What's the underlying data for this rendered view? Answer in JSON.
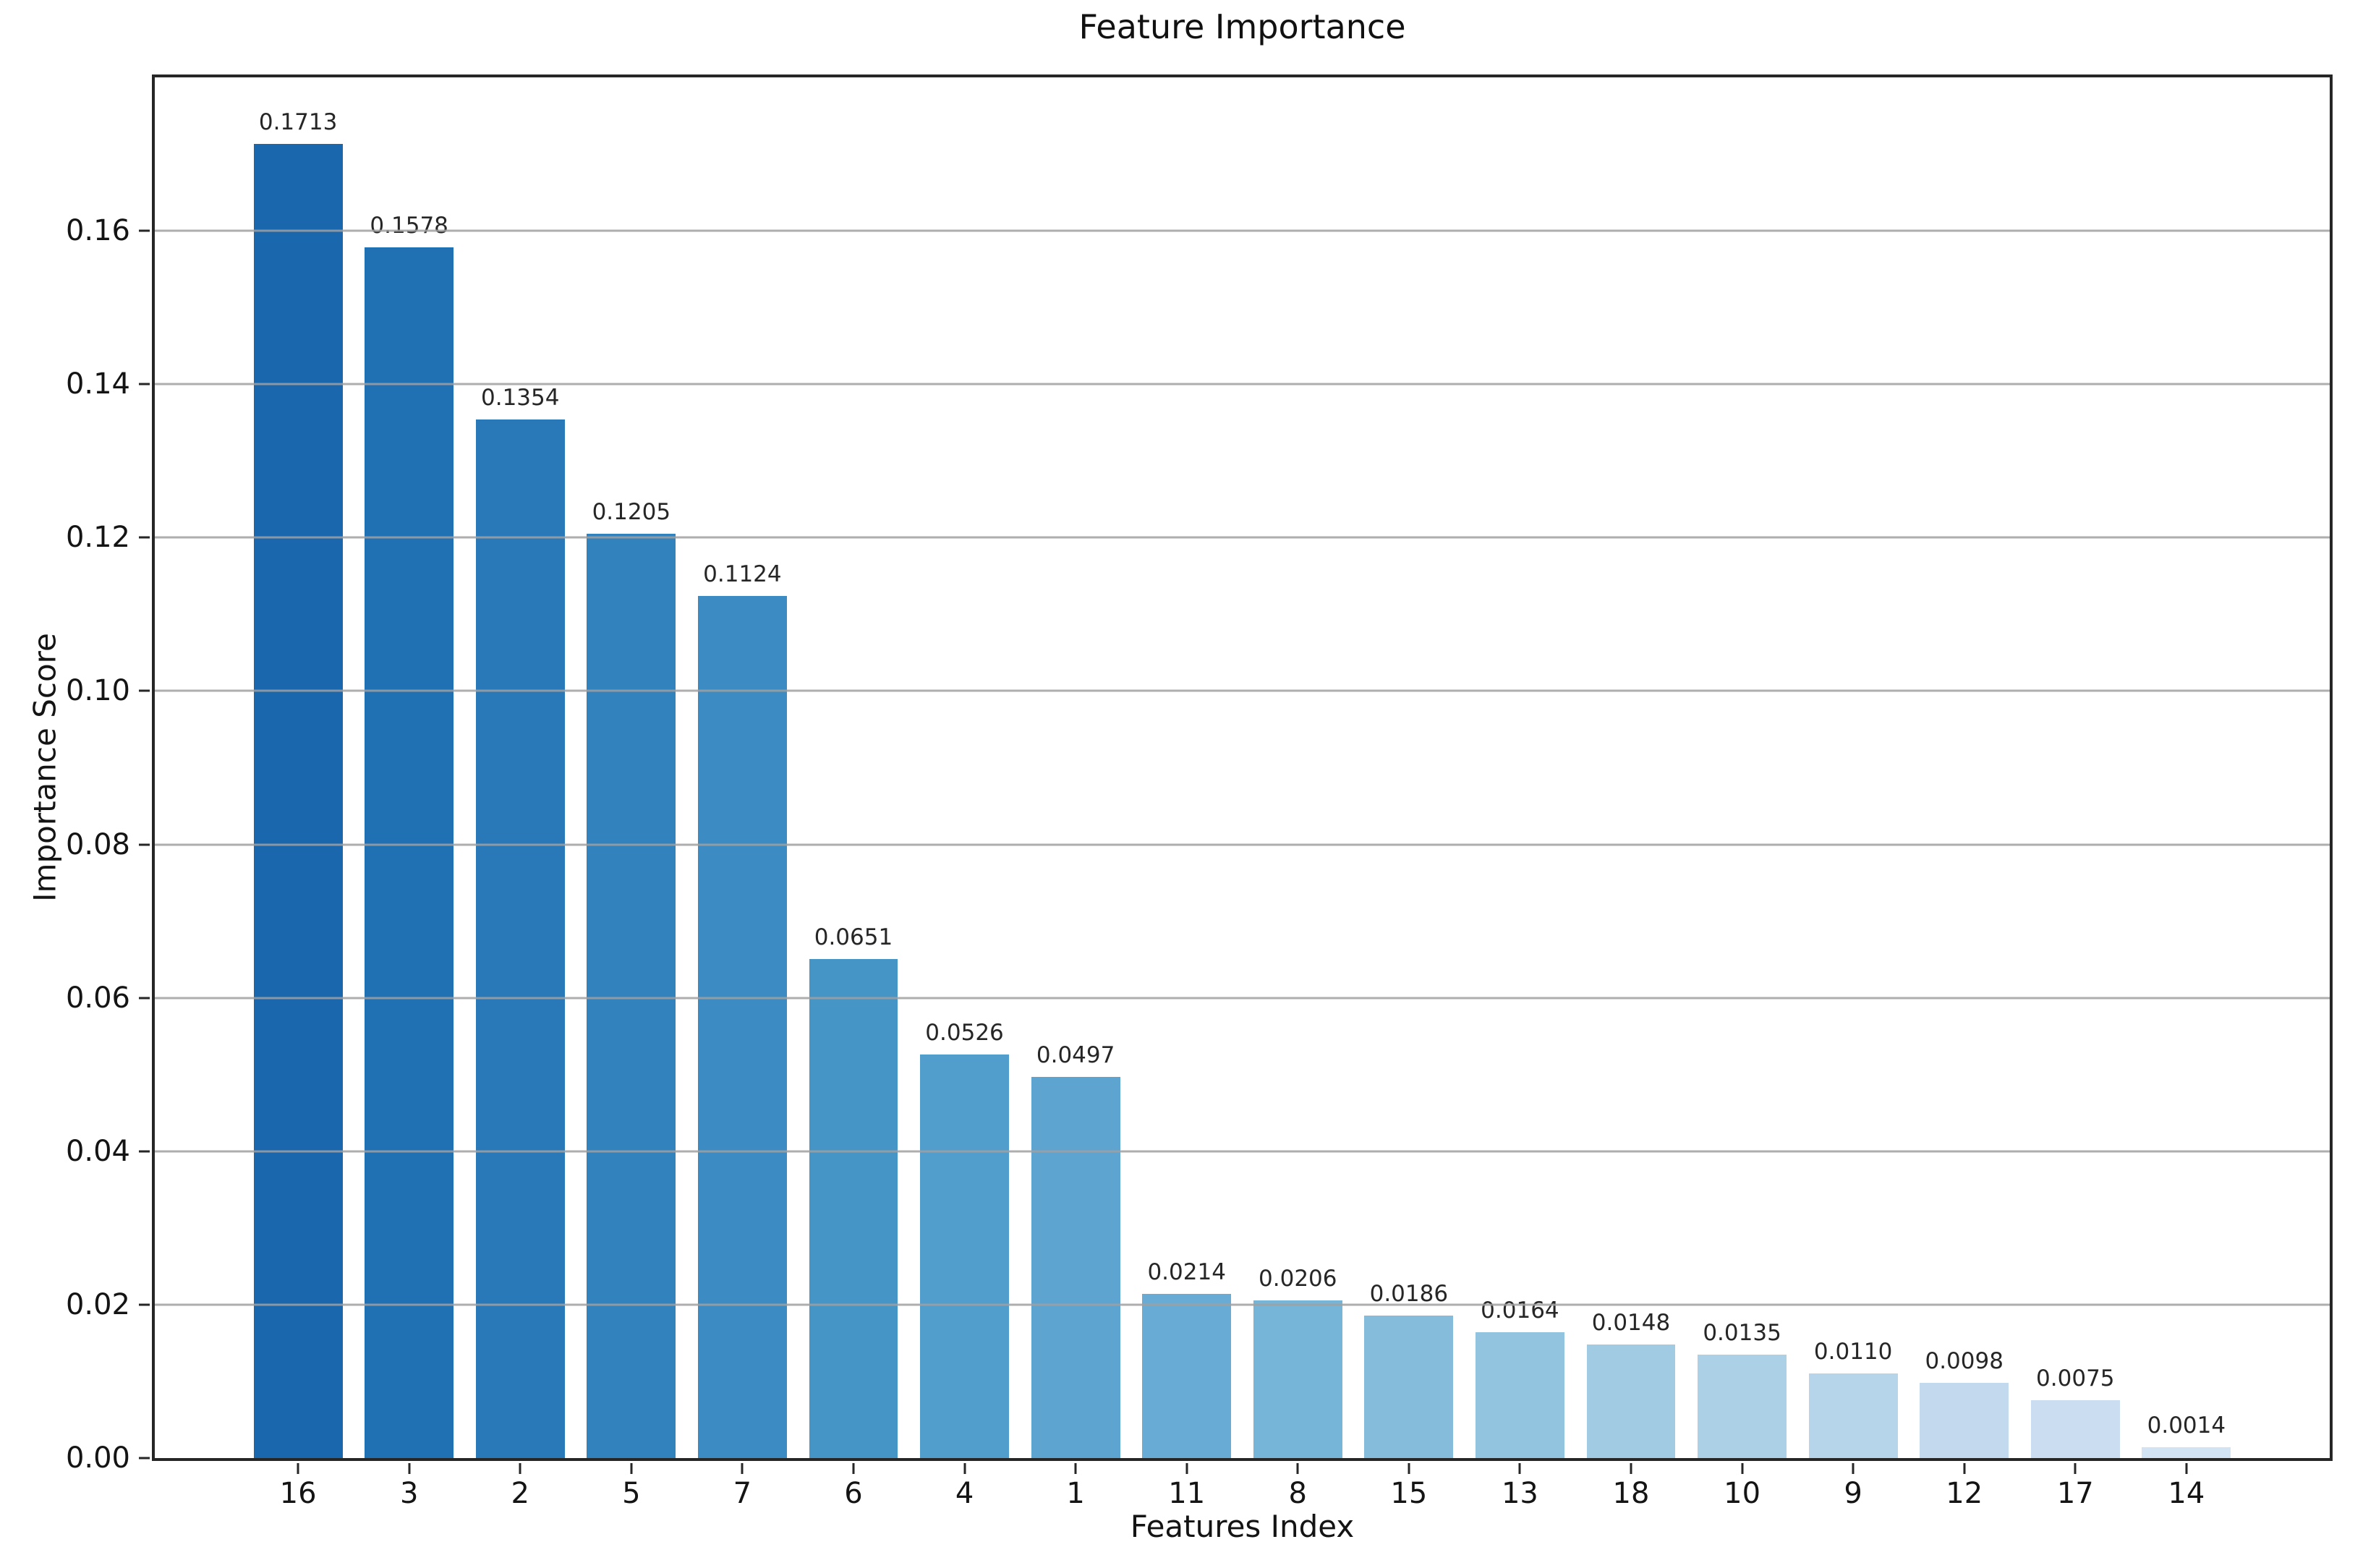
{
  "title": "Feature Importance",
  "colors": {
    "background": "#ffffff",
    "spine": "#262626",
    "grid": "#a0a0a0",
    "text": "#141414",
    "bar_label_text": "#262626"
  },
  "chart_data": {
    "type": "bar",
    "title": "Feature Importance",
    "xlabel": "Features Index",
    "ylabel": "Importance Score",
    "categories": [
      "16",
      "3",
      "2",
      "5",
      "7",
      "6",
      "4",
      "1",
      "11",
      "8",
      "15",
      "13",
      "18",
      "10",
      "9",
      "12",
      "17",
      "14"
    ],
    "values": [
      0.1713,
      0.1578,
      0.1354,
      0.1205,
      0.1124,
      0.0651,
      0.0526,
      0.0497,
      0.0214,
      0.0206,
      0.0186,
      0.0164,
      0.0148,
      0.0135,
      0.011,
      0.0098,
      0.0075,
      0.0014
    ],
    "bar_labels": [
      "0.1713",
      "0.1578",
      "0.1354",
      "0.1205",
      "0.1124",
      "0.0651",
      "0.0526",
      "0.0497",
      "0.0214",
      "0.0206",
      "0.0186",
      "0.0164",
      "0.0148",
      "0.0135",
      "0.0110",
      "0.0098",
      "0.0075",
      "0.0014"
    ],
    "bar_colors": [
      "#1a67ad",
      "#2070b4",
      "#2979b9",
      "#3282be",
      "#3c8cc3",
      "#4695c7",
      "#519dcc",
      "#5da4d0",
      "#68acd5",
      "#76b4d8",
      "#85bcdc",
      "#93c4df",
      "#a1cbe2",
      "#acd0e6",
      "#b7d5ea",
      "#c3daee",
      "#cbdef1",
      "#d2e3f3"
    ],
    "yticks": [
      {
        "value": 0.0,
        "label": "0.00"
      },
      {
        "value": 0.02,
        "label": "0.02"
      },
      {
        "value": 0.04,
        "label": "0.04"
      },
      {
        "value": 0.06,
        "label": "0.06"
      },
      {
        "value": 0.08,
        "label": "0.08"
      },
      {
        "value": 0.1,
        "label": "0.10"
      },
      {
        "value": 0.12,
        "label": "0.12"
      },
      {
        "value": 0.14,
        "label": "0.14"
      },
      {
        "value": 0.16,
        "label": "0.16"
      }
    ],
    "ylim": [
      0,
      0.18
    ],
    "xlim": [
      -1.29,
      18.29
    ],
    "bar_width_units": 0.8,
    "grid": "horizontal-only",
    "legend": "none"
  }
}
